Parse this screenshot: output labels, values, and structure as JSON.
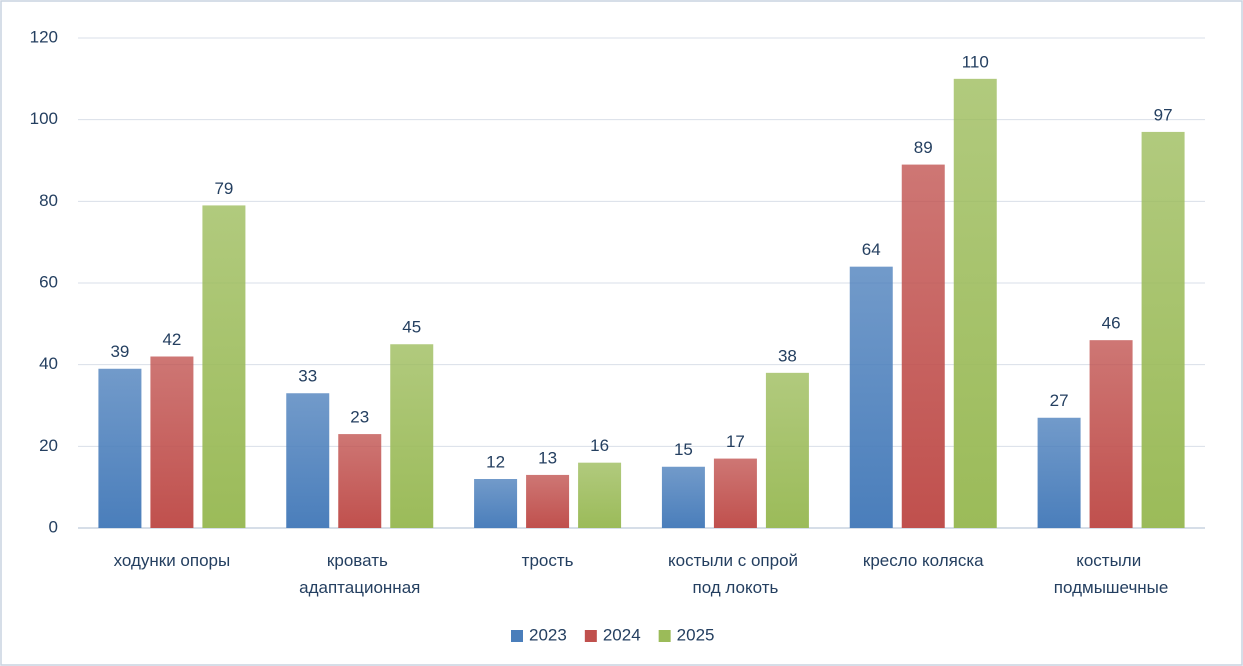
{
  "chart_data": {
    "type": "bar",
    "categories": [
      "ходунки опоры",
      "кровать адаптационная",
      "трость",
      "костыли с опрой под локоть",
      "кресло коляска",
      "костыли подмышечные"
    ],
    "series": [
      {
        "name": "2023",
        "color": "#4a7ebb",
        "values": [
          39,
          33,
          12,
          15,
          64,
          27
        ]
      },
      {
        "name": "2024",
        "color": "#c0504d",
        "values": [
          42,
          23,
          13,
          17,
          89,
          46
        ]
      },
      {
        "name": "2025",
        "color": "#9bbb59",
        "values": [
          79,
          45,
          16,
          38,
          110,
          97
        ]
      }
    ],
    "ylim": [
      0,
      120
    ],
    "yticks": [
      0,
      20,
      40,
      60,
      80,
      100,
      120
    ],
    "grid": true,
    "legend": "bottom"
  }
}
